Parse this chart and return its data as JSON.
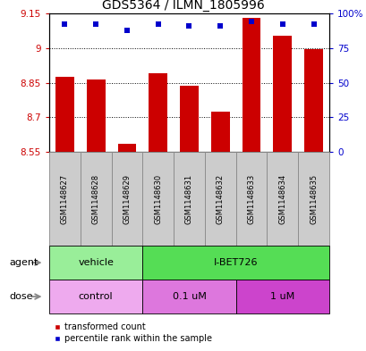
{
  "title": "GDS5364 / ILMN_1805996",
  "samples": [
    "GSM1148627",
    "GSM1148628",
    "GSM1148629",
    "GSM1148630",
    "GSM1148631",
    "GSM1148632",
    "GSM1148633",
    "GSM1148634",
    "GSM1148635"
  ],
  "red_values": [
    8.875,
    8.865,
    8.585,
    8.89,
    8.835,
    8.725,
    9.13,
    9.055,
    8.995
  ],
  "blue_values": [
    92,
    92,
    88,
    92,
    91,
    91,
    94,
    92,
    92
  ],
  "ylim_left": [
    8.55,
    9.15
  ],
  "ylim_right": [
    0,
    100
  ],
  "yticks_left": [
    8.55,
    8.7,
    8.85,
    9.0,
    9.15
  ],
  "yticks_right": [
    0,
    25,
    50,
    75,
    100
  ],
  "ytick_labels_left": [
    "8.55",
    "8.7",
    "8.85",
    "9",
    "9.15"
  ],
  "ytick_labels_right": [
    "0",
    "25",
    "50",
    "75",
    "100%"
  ],
  "hgrid_vals": [
    9.0,
    8.85,
    8.7
  ],
  "bar_color": "#cc0000",
  "dot_color": "#0000cc",
  "agent_groups": [
    {
      "label": "vehicle",
      "start": 0,
      "end": 3,
      "color": "#99ee99"
    },
    {
      "label": "I-BET726",
      "start": 3,
      "end": 9,
      "color": "#55dd55"
    }
  ],
  "dose_groups": [
    {
      "label": "control",
      "start": 0,
      "end": 3,
      "color": "#eeaaee"
    },
    {
      "label": "0.1 uM",
      "start": 3,
      "end": 6,
      "color": "#dd77dd"
    },
    {
      "label": "1 uM",
      "start": 6,
      "end": 9,
      "color": "#cc44cc"
    }
  ],
  "legend_red": "transformed count",
  "legend_blue": "percentile rank within the sample",
  "label_agent": "agent",
  "label_dose": "dose",
  "bg_color": "#ffffff",
  "sample_box_color": "#cccccc"
}
